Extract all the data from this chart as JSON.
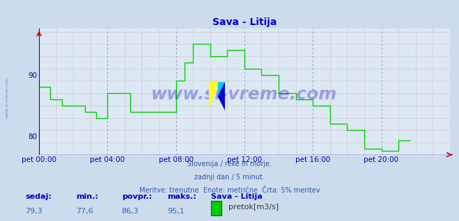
{
  "title": "Sava - Litija",
  "bg_color": "#ccdcec",
  "plot_bg_color": "#dce8f4",
  "line_color": "#00cc00",
  "grid_major_color": "#9999bb",
  "grid_minor_color": "#cc9999",
  "ylabel_tick_color": "#0000aa",
  "xlabel_tick_color": "#0000aa",
  "ylim": [
    77.0,
    97.5
  ],
  "yticks": [
    80,
    90
  ],
  "xtick_labels": [
    "pet 00:00",
    "pet 04:00",
    "pet 08:00",
    "pet 12:00",
    "pet 16:00",
    "pet 20:00"
  ],
  "xtick_positions": [
    0,
    48,
    96,
    144,
    192,
    240
  ],
  "total_points": 288,
  "subtitle1": "Slovenija / reke in morje.",
  "subtitle2": "zadnji dan / 5 minut.",
  "subtitle3": "Meritve: trenutne  Enote: metrične  Črta: 5% meritev",
  "footer_labels": [
    "sedaj:",
    "min.:",
    "povpr.:",
    "maks.:"
  ],
  "footer_values": [
    "79,3",
    "77,6",
    "86,3",
    "95,1"
  ],
  "legend_label": "Sava - Litija",
  "legend_unit": "pretok[m3/s]",
  "watermark": "www.si-vreme.com",
  "data": [
    88,
    88,
    88,
    88,
    88,
    88,
    88,
    88,
    86,
    86,
    86,
    86,
    86,
    86,
    86,
    86,
    85,
    85,
    85,
    85,
    85,
    85,
    85,
    85,
    85,
    85,
    85,
    85,
    85,
    85,
    85,
    85,
    84,
    84,
    84,
    84,
    84,
    84,
    84,
    84,
    83,
    83,
    83,
    83,
    83,
    83,
    83,
    83,
    87,
    87,
    87,
    87,
    87,
    87,
    87,
    87,
    87,
    87,
    87,
    87,
    87,
    87,
    87,
    87,
    84,
    84,
    84,
    84,
    84,
    84,
    84,
    84,
    84,
    84,
    84,
    84,
    84,
    84,
    84,
    84,
    84,
    84,
    84,
    84,
    84,
    84,
    84,
    84,
    84,
    84,
    84,
    84,
    84,
    84,
    84,
    84,
    89,
    89,
    89,
    89,
    89,
    89,
    92,
    92,
    92,
    92,
    92,
    92,
    95,
    95,
    95,
    95,
    95,
    95,
    95,
    95,
    95,
    95,
    95,
    95,
    93,
    93,
    93,
    93,
    93,
    93,
    93,
    93,
    93,
    93,
    93,
    93,
    94,
    94,
    94,
    94,
    94,
    94,
    94,
    94,
    94,
    94,
    94,
    94,
    91,
    91,
    91,
    91,
    91,
    91,
    91,
    91,
    91,
    91,
    91,
    91,
    90,
    90,
    90,
    90,
    90,
    90,
    90,
    90,
    90,
    90,
    90,
    90,
    87,
    87,
    87,
    87,
    87,
    87,
    87,
    87,
    87,
    87,
    87,
    87,
    86,
    86,
    86,
    86,
    86,
    86,
    86,
    86,
    86,
    86,
    86,
    86,
    85,
    85,
    85,
    85,
    85,
    85,
    85,
    85,
    85,
    85,
    85,
    85,
    82,
    82,
    82,
    82,
    82,
    82,
    82,
    82,
    82,
    82,
    82,
    82,
    81,
    81,
    81,
    81,
    81,
    81,
    81,
    81,
    81,
    81,
    81,
    81,
    78,
    78,
    78,
    78,
    78,
    78,
    78,
    78,
    78,
    78,
    78,
    78,
    77.6,
    77.6,
    77.6,
    77.6,
    77.6,
    77.6,
    77.6,
    77.6,
    77.6,
    77.6,
    77.6,
    77.6,
    79.3,
    79.3,
    79.3,
    79.3,
    79.3,
    79.3,
    79.3,
    79.3,
    79.3
  ]
}
